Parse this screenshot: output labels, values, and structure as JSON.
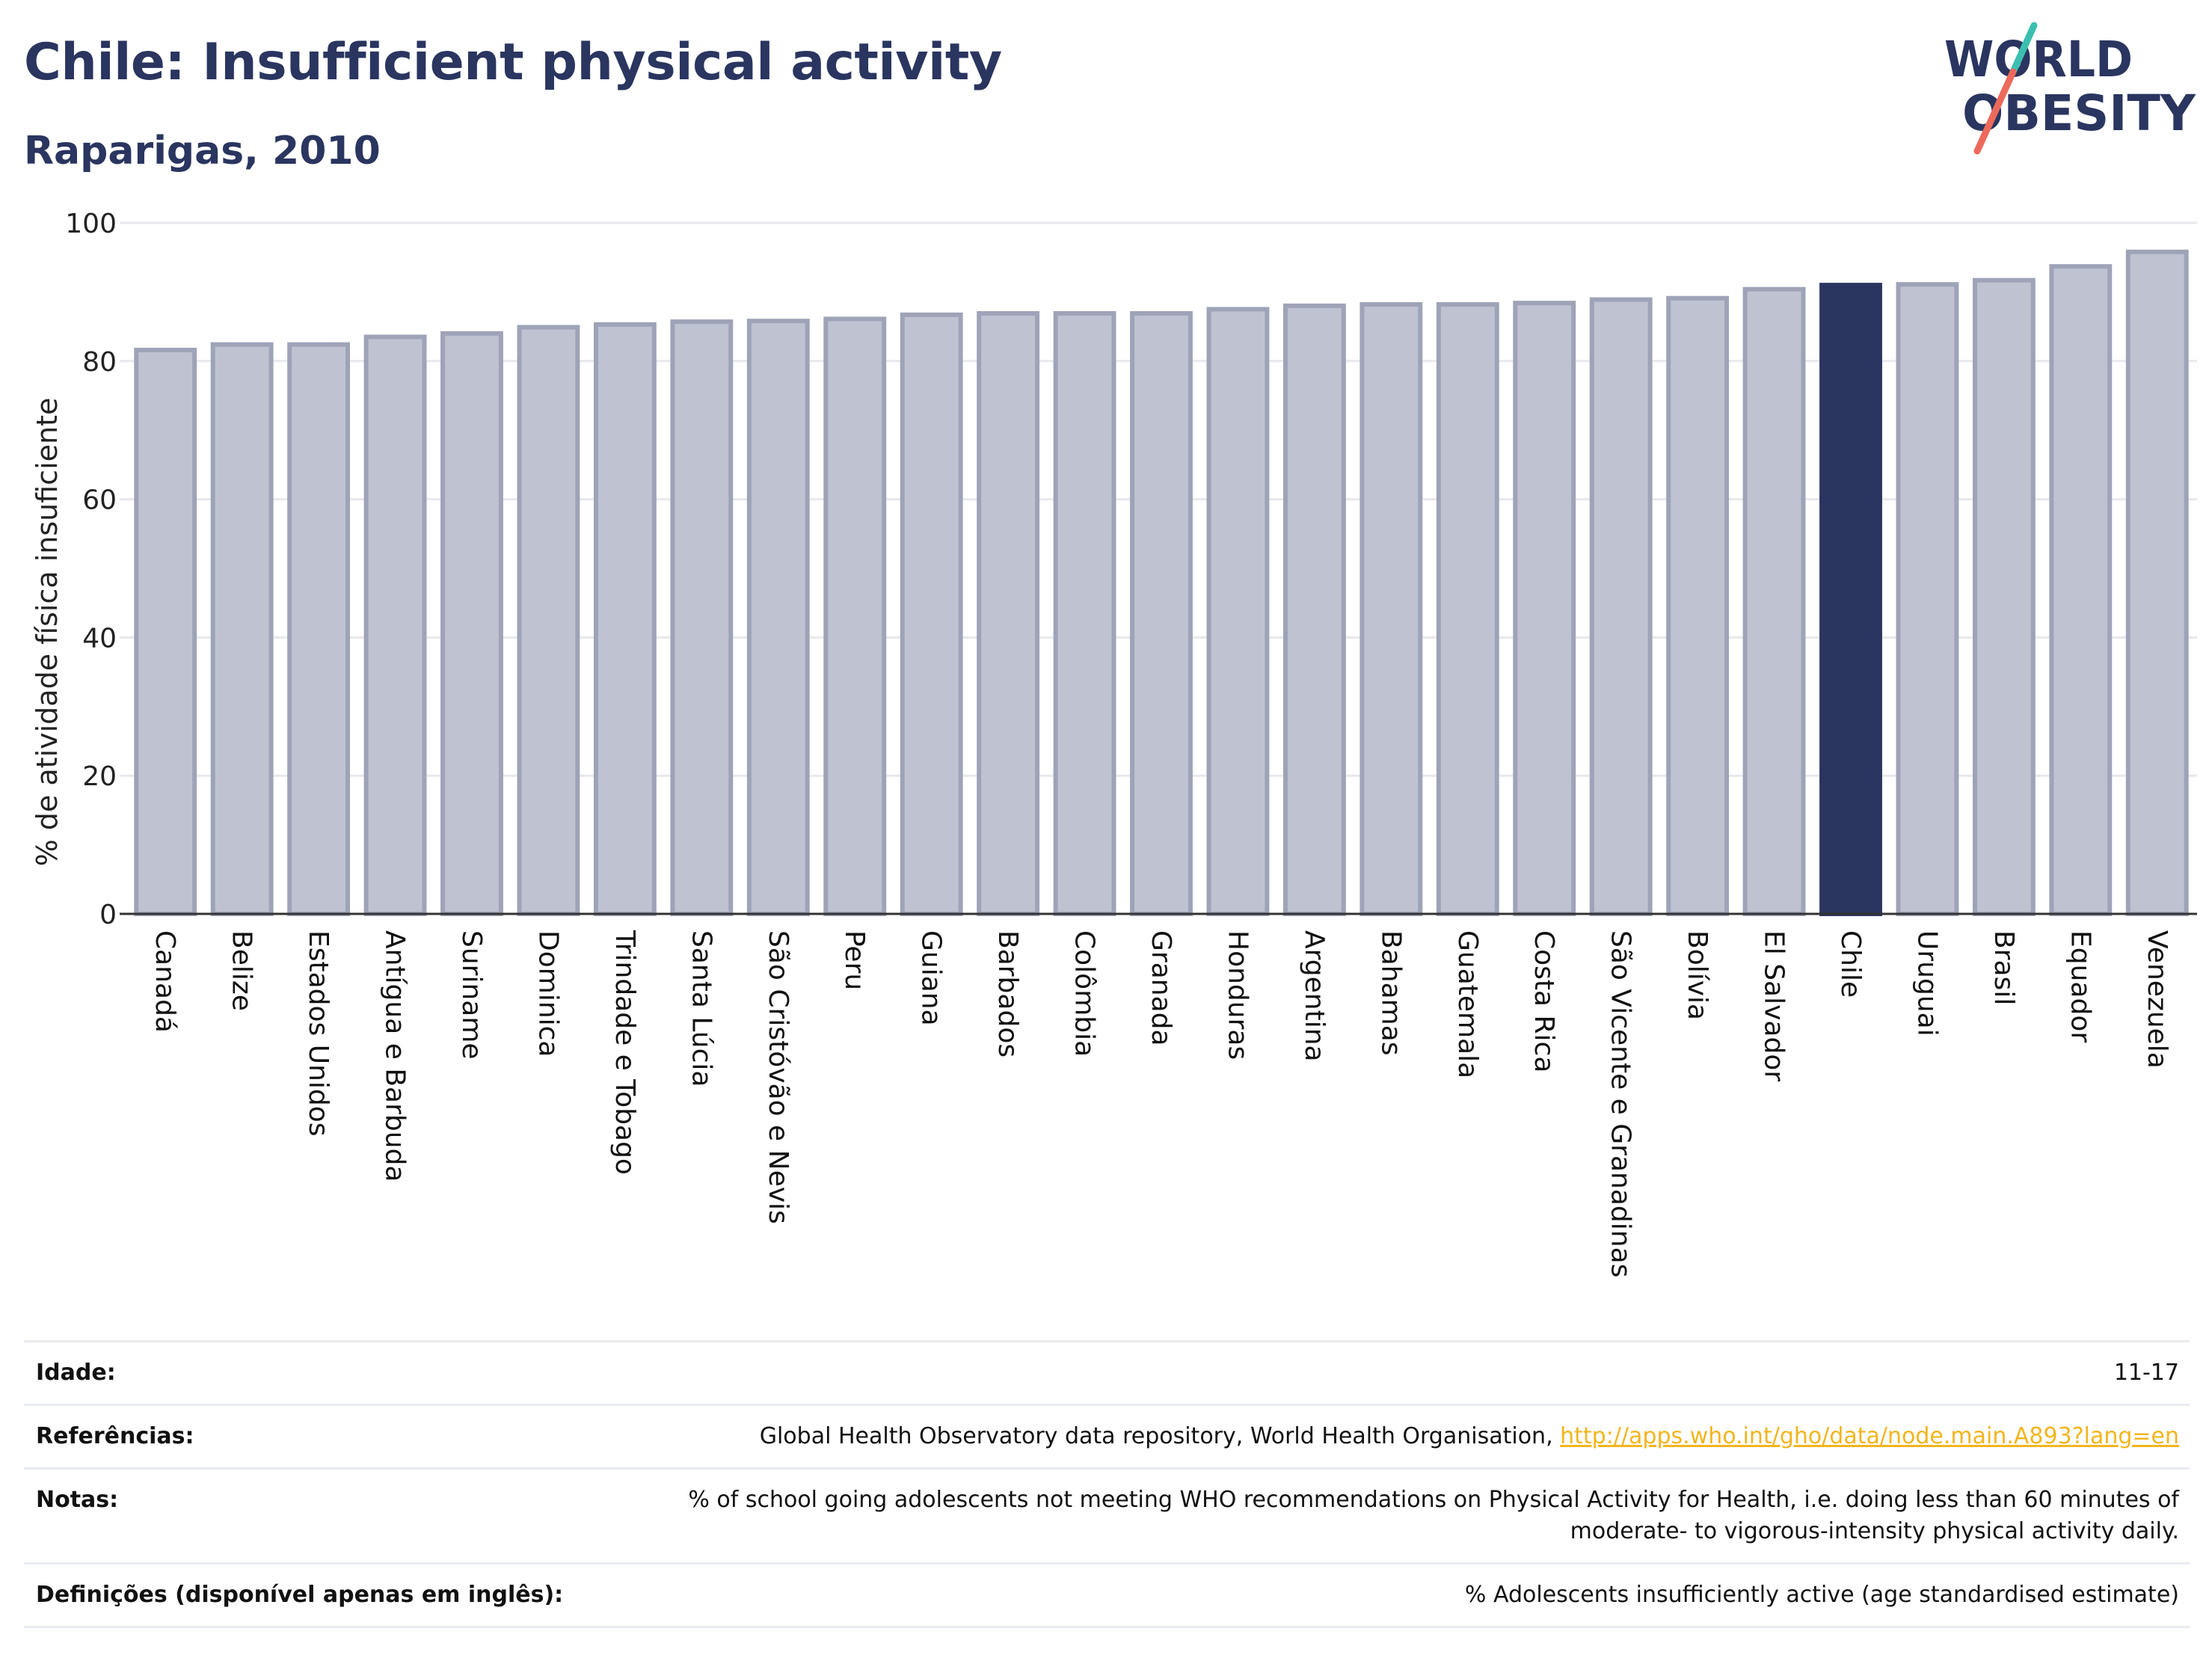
{
  "header": {
    "title": "Chile: Insufficient physical activity",
    "subtitle": "Raparigas, 2010",
    "logo_line1": "WORLD",
    "logo_line2": "OBESITY"
  },
  "chart_data": {
    "type": "bar",
    "ylabel": "% de atividade física insuficiente",
    "xlabel": "",
    "ylim": [
      0,
      100
    ],
    "yticks": [
      0,
      20,
      40,
      60,
      80,
      100
    ],
    "grid": true,
    "highlight": "Chile",
    "categories": [
      "Canadá",
      "Belize",
      "Estados Unidos",
      "Antígua e Barbuda",
      "Suriname",
      "Dominica",
      "Trindade e Tobago",
      "Santa Lúcia",
      "São Cristóvão e Nevis",
      "Peru",
      "Guiana",
      "Barbados",
      "Colômbia",
      "Granada",
      "Honduras",
      "Argentina",
      "Bahamas",
      "Guatemala",
      "Costa Rica",
      "São Vicente e Granadinas",
      "Bolívia",
      "El Salvador",
      "Chile",
      "Uruguai",
      "Brasil",
      "Equador",
      "Venezuela"
    ],
    "values": [
      81.6,
      82.4,
      82.4,
      83.5,
      84.0,
      84.9,
      85.3,
      85.7,
      85.8,
      86.1,
      86.7,
      86.9,
      86.9,
      86.9,
      87.5,
      88.0,
      88.2,
      88.2,
      88.4,
      88.9,
      89.1,
      90.4,
      91.0,
      91.1,
      91.7,
      93.7,
      95.8
    ],
    "colors": {
      "bar": "#bfc2d0",
      "bar_edge": "#9ea3b8",
      "highlight": "#2a3560",
      "grid": "#e8e9ee",
      "axis": "#333333"
    }
  },
  "info": {
    "rows": [
      {
        "key": "Idade:",
        "value": "11-17"
      },
      {
        "key": "Referências:",
        "value": "Global Health Observatory data repository, World Health Organisation, ",
        "link": "http://apps.who.int/gho/data/node.main.A893?lang=en"
      },
      {
        "key": "Notas:",
        "value": "% of school going adolescents not meeting WHO recommendations on Physical Activity for Health, i.e. doing less than 60 minutes of moderate- to vigorous-intensity physical activity daily."
      },
      {
        "key": "Definições (disponível apenas em inglês):",
        "value": "% Adolescents insufficiently active (age standardised estimate)"
      }
    ]
  }
}
